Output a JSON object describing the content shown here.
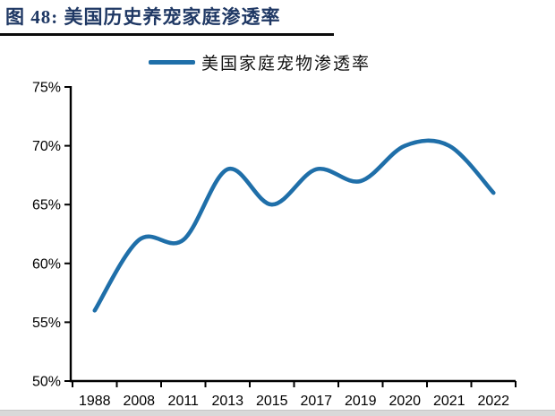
{
  "figure": {
    "title": "图 48: 美国历史养宠家庭渗透率",
    "title_color": "#1F3864"
  },
  "legend": {
    "label": "美国家庭宠物渗透率",
    "line_color": "#1F6FA9"
  },
  "chart_data": {
    "type": "line",
    "title": "美国历史养宠家庭渗透率",
    "smooth": true,
    "grid": false,
    "legend_position": "top",
    "legend_entries": [
      "美国家庭宠物渗透率"
    ],
    "categories": [
      "1988",
      "2008",
      "2011",
      "2013",
      "2015",
      "2017",
      "2019",
      "2020",
      "2021",
      "2022"
    ],
    "series": [
      {
        "name": "美国家庭宠物渗透率",
        "values": [
          56,
          62,
          62,
          68,
          65,
          68,
          67,
          70,
          70,
          66
        ],
        "color": "#1F6FA9"
      }
    ],
    "xlabel": "",
    "ylabel": "",
    "ylim": [
      50,
      75
    ],
    "y_tick_values": [
      50,
      55,
      60,
      65,
      70,
      75
    ],
    "y_tick_labels": [
      "50%",
      "55%",
      "60%",
      "65%",
      "70%",
      "75%"
    ]
  }
}
